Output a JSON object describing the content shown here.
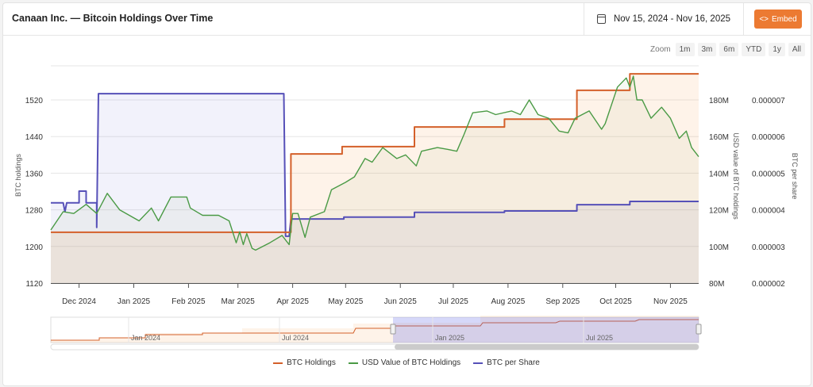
{
  "header": {
    "title": "Canaan Inc. — Bitcoin Holdings Over Time",
    "date_range": "Nov 15, 2024 - Nov 16, 2025",
    "embed_label": "Embed"
  },
  "zoom": {
    "label": "Zoom",
    "buttons": [
      "1m",
      "3m",
      "6m",
      "YTD",
      "1y",
      "All"
    ]
  },
  "colors": {
    "btc_holdings": "#d4602a",
    "usd_value": "#4a9a45",
    "btc_per_share": "#5650b8",
    "embed": "#ec7a32"
  },
  "chart_data": {
    "type": "line",
    "title": "Canaan Inc. — Bitcoin Holdings Over Time",
    "x_start": "2024-11-15",
    "x_unit": "days since start",
    "x_end_day": 367,
    "x_ticks": [
      {
        "label": "Dec 2024",
        "day": 16
      },
      {
        "label": "Jan 2025",
        "day": 47
      },
      {
        "label": "Feb 2025",
        "day": 78
      },
      {
        "label": "Mar 2025",
        "day": 106
      },
      {
        "label": "Apr 2025",
        "day": 137
      },
      {
        "label": "May 2025",
        "day": 167
      },
      {
        "label": "Jun 2025",
        "day": 198
      },
      {
        "label": "Jul 2025",
        "day": 228
      },
      {
        "label": "Aug 2025",
        "day": 259
      },
      {
        "label": "Sep 2025",
        "day": 290
      },
      {
        "label": "Oct 2025",
        "day": 320
      },
      {
        "label": "Nov 2025",
        "day": 351
      }
    ],
    "axes": {
      "left": {
        "label": "BTC holdings",
        "ticks": [
          "1120",
          "1200",
          "1280",
          "1360",
          "1440",
          "1520"
        ],
        "tick_values": [
          1120,
          1200,
          1280,
          1360,
          1440,
          1520
        ]
      },
      "middle": {
        "label": "USD value of BTC holdings",
        "ticks": [
          "80M",
          "100M",
          "120M",
          "140M",
          "160M",
          "180M"
        ],
        "tick_values": [
          80,
          100,
          120,
          140,
          160,
          180
        ]
      },
      "right": {
        "label": "BTC per share",
        "ticks": [
          "0.000002",
          "0.000003",
          "0.000004",
          "0.000005",
          "0.000006",
          "0.000007"
        ],
        "tick_values": [
          2e-06,
          3e-06,
          4e-06,
          5e-06,
          6e-06,
          7e-06
        ]
      }
    },
    "series": [
      {
        "name": "BTC Holdings",
        "axis": "left",
        "step": true,
        "points": [
          [
            0,
            1231
          ],
          [
            136,
            1231
          ],
          [
            136,
            1402
          ],
          [
            165,
            1402
          ],
          [
            165,
            1418
          ],
          [
            206,
            1418
          ],
          [
            206,
            1461
          ],
          [
            257,
            1461
          ],
          [
            257,
            1478
          ],
          [
            298,
            1478
          ],
          [
            298,
            1541
          ],
          [
            328,
            1541
          ],
          [
            328,
            1577
          ],
          [
            367,
            1577
          ]
        ]
      },
      {
        "name": "USD Value of BTC Holdings",
        "axis": "middle",
        "step": false,
        "points": [
          [
            0,
            109
          ],
          [
            7,
            119
          ],
          [
            13,
            118
          ],
          [
            20,
            123
          ],
          [
            26,
            118
          ],
          [
            32,
            129
          ],
          [
            39,
            120
          ],
          [
            50,
            114
          ],
          [
            57,
            121
          ],
          [
            61,
            114
          ],
          [
            68,
            127
          ],
          [
            77,
            127
          ],
          [
            79,
            121
          ],
          [
            86,
            117
          ],
          [
            95,
            117
          ],
          [
            101,
            114
          ],
          [
            105,
            102
          ],
          [
            107,
            108
          ],
          [
            109,
            101
          ],
          [
            111,
            107
          ],
          [
            114,
            99
          ],
          [
            116,
            98
          ],
          [
            124,
            102
          ],
          [
            131,
            106
          ],
          [
            135,
            101
          ],
          [
            137,
            118
          ],
          [
            140,
            118
          ],
          [
            144,
            105
          ],
          [
            147,
            116
          ],
          [
            155,
            119
          ],
          [
            159,
            131
          ],
          [
            167,
            135
          ],
          [
            172,
            138
          ],
          [
            178,
            148
          ],
          [
            182,
            146
          ],
          [
            188,
            154
          ],
          [
            196,
            148
          ],
          [
            201,
            150
          ],
          [
            207,
            144
          ],
          [
            210,
            152
          ],
          [
            219,
            154
          ],
          [
            225,
            153
          ],
          [
            230,
            152
          ],
          [
            234,
            161
          ],
          [
            239,
            173
          ],
          [
            247,
            174
          ],
          [
            252,
            172
          ],
          [
            261,
            174
          ],
          [
            266,
            172
          ],
          [
            271,
            180
          ],
          [
            276,
            172
          ],
          [
            282,
            170
          ],
          [
            288,
            163
          ],
          [
            293,
            162
          ],
          [
            297,
            170
          ],
          [
            305,
            174
          ],
          [
            312,
            164
          ],
          [
            314,
            167
          ],
          [
            321,
            187
          ],
          [
            326,
            192
          ],
          [
            328,
            187
          ],
          [
            330,
            193
          ],
          [
            332,
            180
          ],
          [
            335,
            180
          ],
          [
            340,
            170
          ],
          [
            346,
            176
          ],
          [
            351,
            170
          ],
          [
            356,
            159
          ],
          [
            360,
            163
          ],
          [
            363,
            154
          ],
          [
            367,
            149
          ]
        ]
      },
      {
        "name": "BTC per Share",
        "axis": "right",
        "step": true,
        "points": [
          [
            0,
            4.19e-06
          ],
          [
            7,
            4.19e-06
          ],
          [
            8,
            3.95e-06
          ],
          [
            9,
            4.19e-06
          ],
          [
            16,
            4.19e-06
          ],
          [
            16,
            4.51e-06
          ],
          [
            20,
            4.51e-06
          ],
          [
            20,
            4.19e-06
          ],
          [
            26,
            4.19e-06
          ],
          [
            26,
            3.52e-06
          ],
          [
            27,
            7.17e-06
          ],
          [
            132,
            7.17e-06
          ],
          [
            133,
            3.28e-06
          ],
          [
            135,
            3.28e-06
          ],
          [
            136,
            3.75e-06
          ],
          [
            166,
            3.75e-06
          ],
          [
            166,
            3.8e-06
          ],
          [
            206,
            3.8e-06
          ],
          [
            206,
            3.93e-06
          ],
          [
            257,
            3.93e-06
          ],
          [
            257,
            3.97e-06
          ],
          [
            298,
            3.97e-06
          ],
          [
            298,
            4.14e-06
          ],
          [
            328,
            4.14e-06
          ],
          [
            328,
            4.23e-06
          ],
          [
            367,
            4.23e-06
          ]
        ]
      }
    ],
    "navigator": {
      "ticks": [
        "Jan 2024",
        "Jul 2024",
        "Jan 2025",
        "Jul 2025"
      ],
      "selected_range": [
        "2024-11-15",
        "2025-11-16"
      ]
    },
    "legend": {
      "position": "bottom",
      "items": [
        "BTC Holdings",
        "USD Value of BTC Holdings",
        "BTC per Share"
      ]
    }
  }
}
